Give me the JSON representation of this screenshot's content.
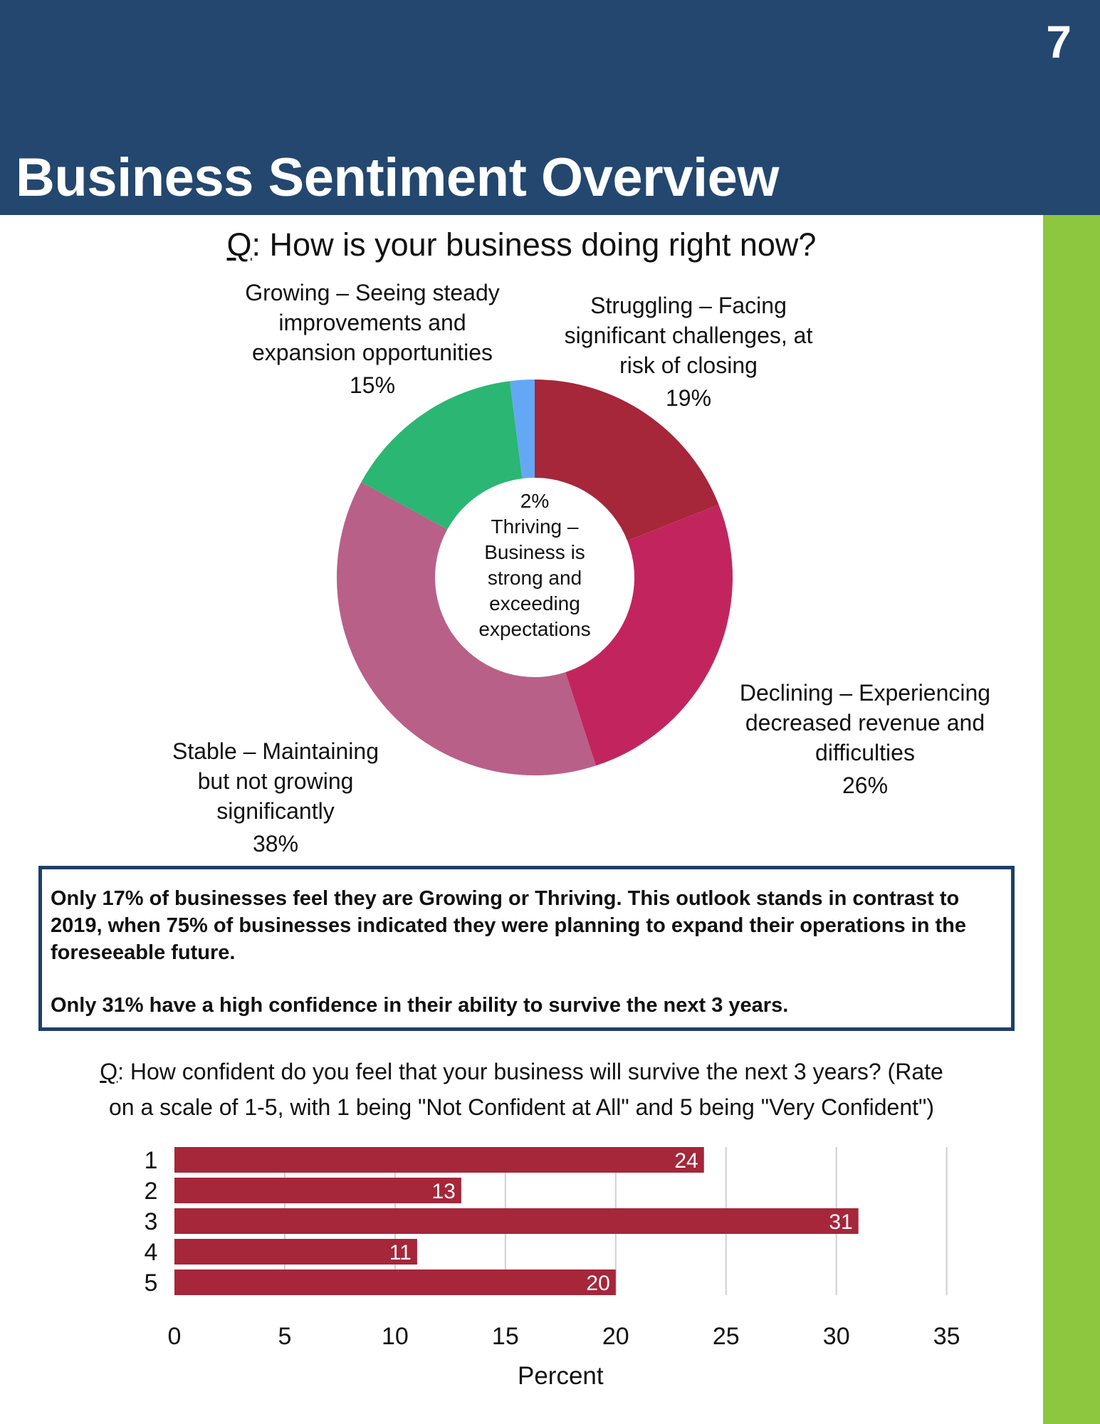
{
  "header": {
    "page_number": "7",
    "title": "Business Sentiment Overview"
  },
  "colors": {
    "header": "#23476f",
    "accent_green": "#8dc63f",
    "bar": "#a6263a",
    "box_border": "#1f3f66"
  },
  "question1": {
    "prefix": "Q",
    "text": ": How is your business doing right now?"
  },
  "callout": {
    "line1": "Only 17% of businesses feel they are Growing or Thriving. This outlook stands in contrast to 2019, when 75% of businesses indicated they were planning to expand their operations in the foreseeable future.",
    "line2": "Only 31% have a high confidence in their ability to survive the next 3 years."
  },
  "question2": {
    "prefix": "Q",
    "text": ": How confident do you feel that your business will survive the next 3 years? (Rate",
    "text2": "on a scale of 1-5, with 1 being \"Not Confident at All\" and 5 being \"Very Confident\")"
  },
  "chart_data": [
    {
      "type": "pie",
      "title": "Q: How is your business doing right now?",
      "donut": true,
      "slices": [
        {
          "label": "Struggling – Facing significant challenges, at risk of closing",
          "lines": [
            "Struggling – Facing",
            "significant challenges, at",
            "risk of closing"
          ],
          "value": 19,
          "value_label": "19%",
          "color": "#a6263a"
        },
        {
          "label": "Declining – Experiencing decreased revenue and difficulties",
          "lines": [
            "Declining – Experiencing",
            "decreased revenue and",
            "difficulties"
          ],
          "value": 26,
          "value_label": "26%",
          "color": "#c2255e"
        },
        {
          "label": "Stable – Maintaining but not growing significantly",
          "lines": [
            "Stable – Maintaining",
            "but not growing",
            "significantly"
          ],
          "value": 38,
          "value_label": "38%",
          "color": "#b86088"
        },
        {
          "label": "Growing – Seeing steady improvements and expansion opportunities",
          "lines": [
            "Growing – Seeing steady",
            "improvements and",
            "expansion opportunities"
          ],
          "value": 15,
          "value_label": "15%",
          "color": "#2bb673"
        },
        {
          "label": "Thriving – Business is strong and exceeding expectations",
          "lines": [
            "Thriving –",
            "Business is",
            "strong and",
            "exceeding",
            "expectations"
          ],
          "value": 2,
          "value_label": "2%",
          "color": "#64a8f5"
        }
      ]
    },
    {
      "type": "bar",
      "orientation": "horizontal",
      "categories": [
        "1",
        "2",
        "3",
        "4",
        "5"
      ],
      "values": [
        24,
        13,
        31,
        11,
        20
      ],
      "xlabel": "Percent",
      "ylabel": "",
      "xlim": [
        0,
        35
      ],
      "xticks": [
        0,
        5,
        10,
        15,
        20,
        25,
        30,
        35
      ],
      "grid": true,
      "color": "#a6263a"
    }
  ]
}
